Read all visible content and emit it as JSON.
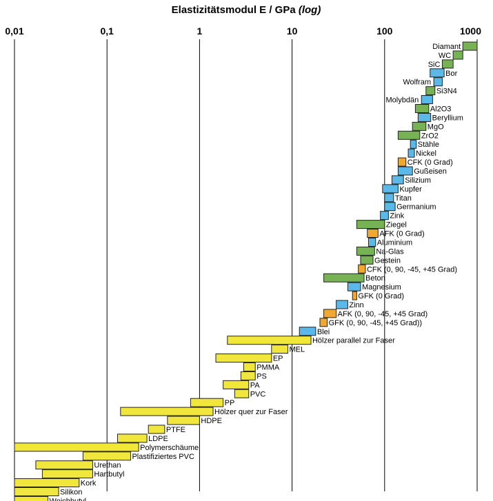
{
  "chart_data": {
    "type": "bar",
    "orientation": "horizontal",
    "title": "Elastizitätsmodul E / GPa",
    "title_suffix": "(log)",
    "x_scale": "log",
    "xlim": [
      0.01,
      1000
    ],
    "ticks": [
      {
        "value": 0.01,
        "label": "0,01"
      },
      {
        "value": 0.1,
        "label": "0,1"
      },
      {
        "value": 1,
        "label": "1"
      },
      {
        "value": 10,
        "label": "10"
      },
      {
        "value": 100,
        "label": "100"
      },
      {
        "value": 1000,
        "label": "1000"
      }
    ],
    "grid": "vertical",
    "colors": {
      "green": "#77b254",
      "blue": "#5ab9e8",
      "orange": "#f0a830",
      "yellow": "#f0e63c"
    },
    "materials": [
      {
        "name": "Diamant",
        "min": 700,
        "max": 1000,
        "color": "green"
      },
      {
        "name": "WC",
        "min": 550,
        "max": 700,
        "color": "green"
      },
      {
        "name": "SiC",
        "min": 420,
        "max": 550,
        "color": "green"
      },
      {
        "name": "Bor",
        "min": 310,
        "max": 440,
        "color": "blue"
      },
      {
        "name": "Wolfram",
        "min": 340,
        "max": 420,
        "color": "blue"
      },
      {
        "name": "Si3N4",
        "min": 280,
        "max": 350,
        "color": "green"
      },
      {
        "name": "Molybdän",
        "min": 250,
        "max": 330,
        "color": "blue"
      },
      {
        "name": "Al2O3",
        "min": 215,
        "max": 300,
        "color": "green"
      },
      {
        "name": "Beryllium",
        "min": 230,
        "max": 315,
        "color": "blue"
      },
      {
        "name": "MgO",
        "min": 200,
        "max": 280,
        "color": "green"
      },
      {
        "name": "ZrO2",
        "min": 140,
        "max": 240,
        "color": "green"
      },
      {
        "name": "Stähle",
        "min": 190,
        "max": 220,
        "color": "blue"
      },
      {
        "name": "Nickel",
        "min": 180,
        "max": 210,
        "color": "blue"
      },
      {
        "name": "CFK (0 Grad)",
        "min": 140,
        "max": 170,
        "color": "orange"
      },
      {
        "name": "Gußeisen",
        "min": 140,
        "max": 200,
        "color": "blue"
      },
      {
        "name": "Silizium",
        "min": 120,
        "max": 160,
        "color": "blue"
      },
      {
        "name": "Kupfer",
        "min": 95,
        "max": 140,
        "color": "blue"
      },
      {
        "name": "Titan",
        "min": 100,
        "max": 125,
        "color": "blue"
      },
      {
        "name": "Germanium",
        "min": 100,
        "max": 130,
        "color": "blue"
      },
      {
        "name": "Zink",
        "min": 90,
        "max": 110,
        "color": "blue"
      },
      {
        "name": "Ziegel",
        "min": 50,
        "max": 100,
        "color": "green"
      },
      {
        "name": "AFK (0 Grad)",
        "min": 65,
        "max": 85,
        "color": "orange"
      },
      {
        "name": "Aluminium",
        "min": 67,
        "max": 80,
        "color": "blue"
      },
      {
        "name": "Na-Glas",
        "min": 50,
        "max": 78,
        "color": "green"
      },
      {
        "name": "Gestein",
        "min": 55,
        "max": 75,
        "color": "green"
      },
      {
        "name": "CFK (0, 90, -45, +45 Grad)",
        "min": 52,
        "max": 62,
        "color": "orange"
      },
      {
        "name": "Beton",
        "min": 22,
        "max": 60,
        "color": "green"
      },
      {
        "name": "Magnesium",
        "min": 40,
        "max": 55,
        "color": "blue"
      },
      {
        "name": "GFK (0 Grad)",
        "min": 45,
        "max": 50,
        "color": "orange"
      },
      {
        "name": "Zinn",
        "min": 30,
        "max": 40,
        "color": "blue"
      },
      {
        "name": "AFK (0, 90, -45, +45 Grad)",
        "min": 22,
        "max": 30,
        "color": "orange"
      },
      {
        "name": "GFK (0, 90, -45, +45 Grad))",
        "min": 20,
        "max": 24,
        "color": "orange"
      },
      {
        "name": "Blei",
        "min": 12,
        "max": 18,
        "color": "blue"
      },
      {
        "name": "Hölzer parallel zur Faser",
        "min": 2,
        "max": 16,
        "color": "yellow"
      },
      {
        "name": "MEL",
        "min": 6,
        "max": 9,
        "color": "yellow"
      },
      {
        "name": "EP",
        "min": 1.5,
        "max": 6,
        "color": "yellow"
      },
      {
        "name": "PMMA",
        "min": 3,
        "max": 4,
        "color": "yellow"
      },
      {
        "name": "PS",
        "min": 2.8,
        "max": 4,
        "color": "yellow"
      },
      {
        "name": "PA",
        "min": 1.8,
        "max": 3.4,
        "color": "yellow"
      },
      {
        "name": "PVC",
        "min": 2.4,
        "max": 3.4,
        "color": "yellow"
      },
      {
        "name": "PP",
        "min": 0.8,
        "max": 1.8,
        "color": "yellow"
      },
      {
        "name": "Hölzer quer zur Faser",
        "min": 0.14,
        "max": 1.4,
        "color": "yellow"
      },
      {
        "name": "HDPE",
        "min": 0.45,
        "max": 1.0,
        "color": "yellow"
      },
      {
        "name": "PTFE",
        "min": 0.28,
        "max": 0.42,
        "color": "yellow"
      },
      {
        "name": "LDPE",
        "min": 0.13,
        "max": 0.27,
        "color": "yellow"
      },
      {
        "name": "Polymerschäume",
        "min": 0.01,
        "max": 0.22,
        "color": "yellow"
      },
      {
        "name": "Plastifiziertes PVC",
        "min": 0.055,
        "max": 0.18,
        "color": "yellow"
      },
      {
        "name": "Urethan",
        "min": 0.017,
        "max": 0.07,
        "color": "yellow"
      },
      {
        "name": "Hartbutyl",
        "min": 0.02,
        "max": 0.07,
        "color": "yellow"
      },
      {
        "name": "Kork",
        "min": 0.01,
        "max": 0.05,
        "color": "yellow"
      },
      {
        "name": "Silikon",
        "min": 0.01,
        "max": 0.03,
        "color": "yellow"
      },
      {
        "name": "Weichbutyl",
        "min": 0.01,
        "max": 0.023,
        "color": "yellow"
      }
    ]
  }
}
